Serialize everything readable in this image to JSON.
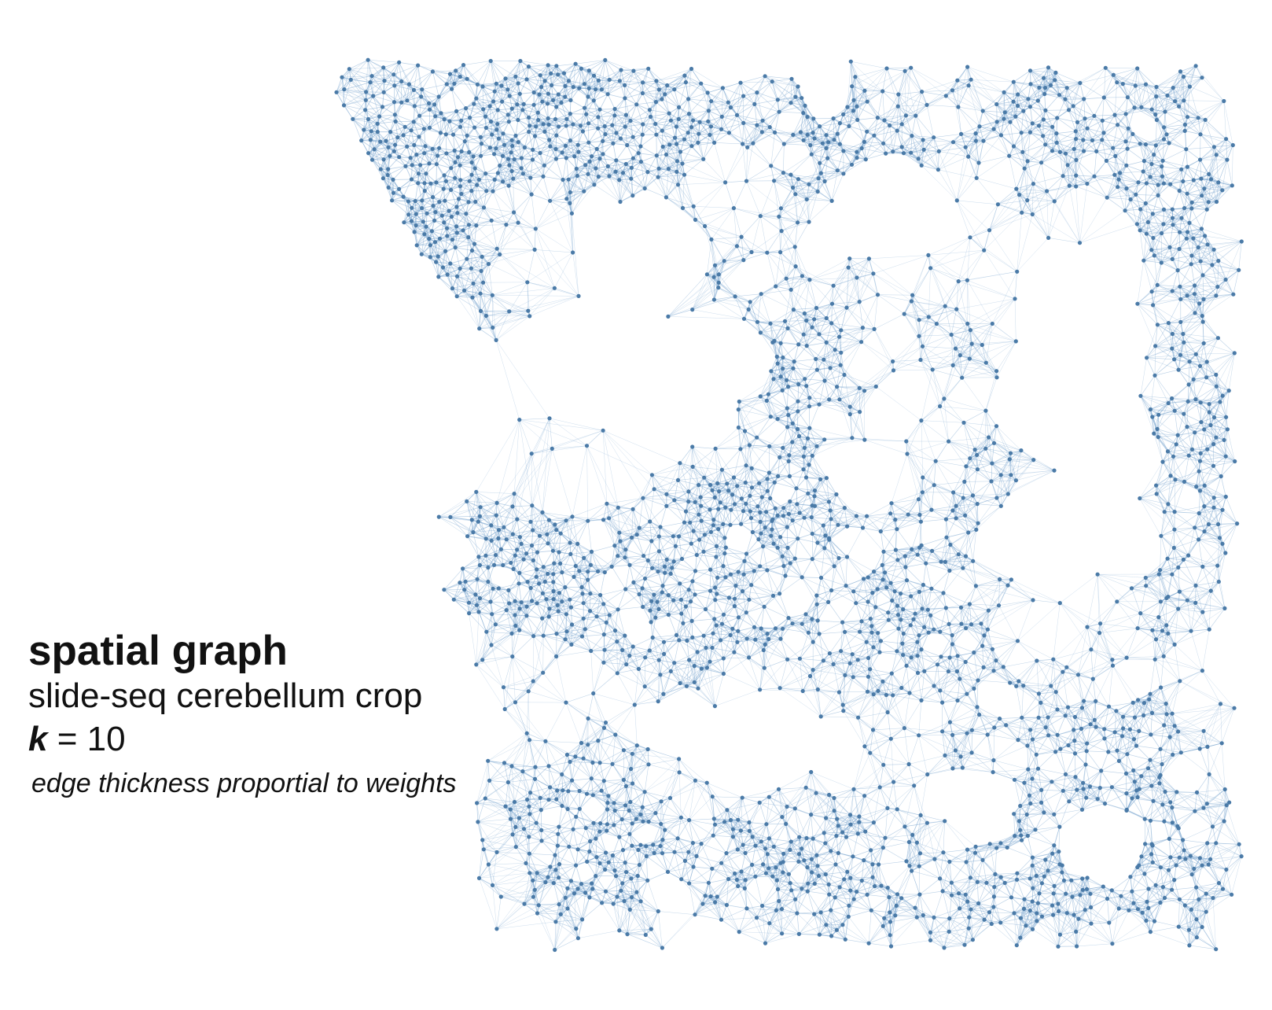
{
  "caption": {
    "title": "spatial graph",
    "subtitle": "slide-seq cerebellum crop",
    "k_symbol": "k",
    "k_equals": " = 10",
    "note": "edge thickness proportial to weights"
  },
  "graph": {
    "k": 10,
    "node_color": "#4a7aa7",
    "edge_color": "#7fa9d1",
    "background": "#ffffff"
  }
}
